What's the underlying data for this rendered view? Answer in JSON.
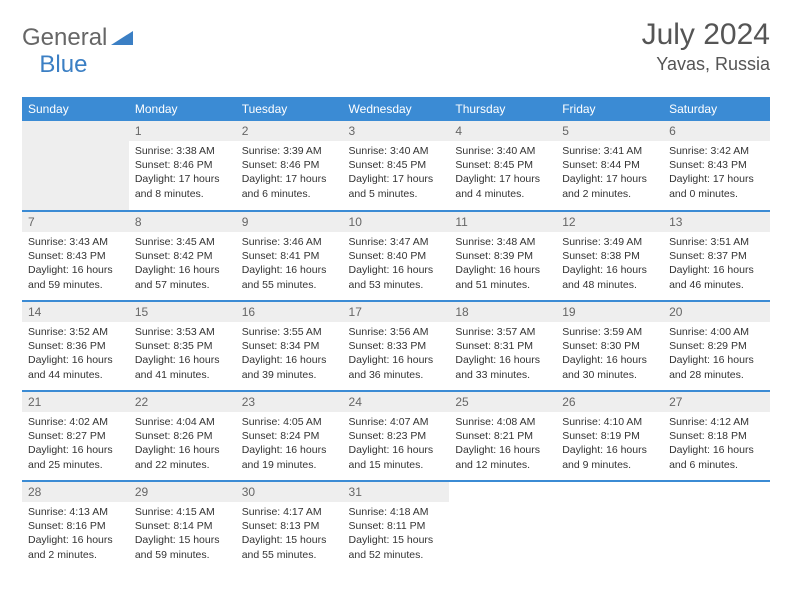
{
  "brand": {
    "part1": "General",
    "part2": "Blue"
  },
  "title": "July 2024",
  "location": "Yavas, Russia",
  "colors": {
    "header_bg": "#3b8bd4",
    "header_text": "#ffffff",
    "daynum_bg": "#eeeeee",
    "row_divider": "#3b8bd4",
    "body_text": "#333333",
    "title_text": "#555555"
  },
  "weekdays": [
    "Sunday",
    "Monday",
    "Tuesday",
    "Wednesday",
    "Thursday",
    "Friday",
    "Saturday"
  ],
  "weeks": [
    [
      null,
      {
        "n": "1",
        "sr": "Sunrise: 3:38 AM",
        "ss": "Sunset: 8:46 PM",
        "dl": "Daylight: 17 hours and 8 minutes."
      },
      {
        "n": "2",
        "sr": "Sunrise: 3:39 AM",
        "ss": "Sunset: 8:46 PM",
        "dl": "Daylight: 17 hours and 6 minutes."
      },
      {
        "n": "3",
        "sr": "Sunrise: 3:40 AM",
        "ss": "Sunset: 8:45 PM",
        "dl": "Daylight: 17 hours and 5 minutes."
      },
      {
        "n": "4",
        "sr": "Sunrise: 3:40 AM",
        "ss": "Sunset: 8:45 PM",
        "dl": "Daylight: 17 hours and 4 minutes."
      },
      {
        "n": "5",
        "sr": "Sunrise: 3:41 AM",
        "ss": "Sunset: 8:44 PM",
        "dl": "Daylight: 17 hours and 2 minutes."
      },
      {
        "n": "6",
        "sr": "Sunrise: 3:42 AM",
        "ss": "Sunset: 8:43 PM",
        "dl": "Daylight: 17 hours and 0 minutes."
      }
    ],
    [
      {
        "n": "7",
        "sr": "Sunrise: 3:43 AM",
        "ss": "Sunset: 8:43 PM",
        "dl": "Daylight: 16 hours and 59 minutes."
      },
      {
        "n": "8",
        "sr": "Sunrise: 3:45 AM",
        "ss": "Sunset: 8:42 PM",
        "dl": "Daylight: 16 hours and 57 minutes."
      },
      {
        "n": "9",
        "sr": "Sunrise: 3:46 AM",
        "ss": "Sunset: 8:41 PM",
        "dl": "Daylight: 16 hours and 55 minutes."
      },
      {
        "n": "10",
        "sr": "Sunrise: 3:47 AM",
        "ss": "Sunset: 8:40 PM",
        "dl": "Daylight: 16 hours and 53 minutes."
      },
      {
        "n": "11",
        "sr": "Sunrise: 3:48 AM",
        "ss": "Sunset: 8:39 PM",
        "dl": "Daylight: 16 hours and 51 minutes."
      },
      {
        "n": "12",
        "sr": "Sunrise: 3:49 AM",
        "ss": "Sunset: 8:38 PM",
        "dl": "Daylight: 16 hours and 48 minutes."
      },
      {
        "n": "13",
        "sr": "Sunrise: 3:51 AM",
        "ss": "Sunset: 8:37 PM",
        "dl": "Daylight: 16 hours and 46 minutes."
      }
    ],
    [
      {
        "n": "14",
        "sr": "Sunrise: 3:52 AM",
        "ss": "Sunset: 8:36 PM",
        "dl": "Daylight: 16 hours and 44 minutes."
      },
      {
        "n": "15",
        "sr": "Sunrise: 3:53 AM",
        "ss": "Sunset: 8:35 PM",
        "dl": "Daylight: 16 hours and 41 minutes."
      },
      {
        "n": "16",
        "sr": "Sunrise: 3:55 AM",
        "ss": "Sunset: 8:34 PM",
        "dl": "Daylight: 16 hours and 39 minutes."
      },
      {
        "n": "17",
        "sr": "Sunrise: 3:56 AM",
        "ss": "Sunset: 8:33 PM",
        "dl": "Daylight: 16 hours and 36 minutes."
      },
      {
        "n": "18",
        "sr": "Sunrise: 3:57 AM",
        "ss": "Sunset: 8:31 PM",
        "dl": "Daylight: 16 hours and 33 minutes."
      },
      {
        "n": "19",
        "sr": "Sunrise: 3:59 AM",
        "ss": "Sunset: 8:30 PM",
        "dl": "Daylight: 16 hours and 30 minutes."
      },
      {
        "n": "20",
        "sr": "Sunrise: 4:00 AM",
        "ss": "Sunset: 8:29 PM",
        "dl": "Daylight: 16 hours and 28 minutes."
      }
    ],
    [
      {
        "n": "21",
        "sr": "Sunrise: 4:02 AM",
        "ss": "Sunset: 8:27 PM",
        "dl": "Daylight: 16 hours and 25 minutes."
      },
      {
        "n": "22",
        "sr": "Sunrise: 4:04 AM",
        "ss": "Sunset: 8:26 PM",
        "dl": "Daylight: 16 hours and 22 minutes."
      },
      {
        "n": "23",
        "sr": "Sunrise: 4:05 AM",
        "ss": "Sunset: 8:24 PM",
        "dl": "Daylight: 16 hours and 19 minutes."
      },
      {
        "n": "24",
        "sr": "Sunrise: 4:07 AM",
        "ss": "Sunset: 8:23 PM",
        "dl": "Daylight: 16 hours and 15 minutes."
      },
      {
        "n": "25",
        "sr": "Sunrise: 4:08 AM",
        "ss": "Sunset: 8:21 PM",
        "dl": "Daylight: 16 hours and 12 minutes."
      },
      {
        "n": "26",
        "sr": "Sunrise: 4:10 AM",
        "ss": "Sunset: 8:19 PM",
        "dl": "Daylight: 16 hours and 9 minutes."
      },
      {
        "n": "27",
        "sr": "Sunrise: 4:12 AM",
        "ss": "Sunset: 8:18 PM",
        "dl": "Daylight: 16 hours and 6 minutes."
      }
    ],
    [
      {
        "n": "28",
        "sr": "Sunrise: 4:13 AM",
        "ss": "Sunset: 8:16 PM",
        "dl": "Daylight: 16 hours and 2 minutes."
      },
      {
        "n": "29",
        "sr": "Sunrise: 4:15 AM",
        "ss": "Sunset: 8:14 PM",
        "dl": "Daylight: 15 hours and 59 minutes."
      },
      {
        "n": "30",
        "sr": "Sunrise: 4:17 AM",
        "ss": "Sunset: 8:13 PM",
        "dl": "Daylight: 15 hours and 55 minutes."
      },
      {
        "n": "31",
        "sr": "Sunrise: 4:18 AM",
        "ss": "Sunset: 8:11 PM",
        "dl": "Daylight: 15 hours and 52 minutes."
      },
      null,
      null,
      null
    ]
  ]
}
